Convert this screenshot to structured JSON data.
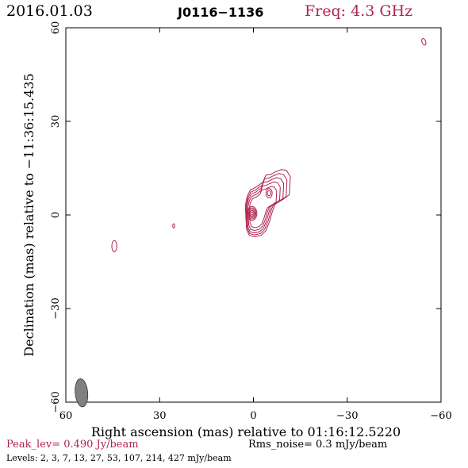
{
  "header": {
    "date": "2016.01.03",
    "source": "J0116−1136",
    "freq": "Freq: 4.3 GHz"
  },
  "chart_data": {
    "type": "contour",
    "xlabel": "Right ascension (mas) relative to 01:16:12.5220",
    "ylabel": "Declination (mas) relative to −11:36:15.435",
    "xlim": [
      60,
      -60
    ],
    "ylim": [
      -60,
      60
    ],
    "x_ticks": [
      60,
      30,
      0,
      -30,
      -60
    ],
    "y_ticks": [
      60,
      30,
      0,
      -30,
      -60
    ],
    "x_tick_labels": [
      "60",
      "30",
      "0",
      "−30",
      "−60"
    ],
    "y_tick_labels": [
      "60",
      "30",
      "0",
      "−30",
      "−60"
    ],
    "contour_color": "#b0244f",
    "beam": {
      "x": 55,
      "y": -57,
      "major_mas": 4.5,
      "minor_mas": 2.0,
      "pa_deg": 5,
      "color": "#808080"
    },
    "core": {
      "x": 0,
      "y": 0
    },
    "features": [
      {
        "name": "core",
        "x": 0.5,
        "y": 0.5,
        "rx": 1.6,
        "ry": 2.2,
        "rot": 0
      },
      {
        "name": "jet-knot",
        "x": -5,
        "y": 7,
        "rx": 1.0,
        "ry": 1.5,
        "rot": 0
      },
      {
        "name": "west-island",
        "x": 25.5,
        "y": -3.5,
        "rx": 0.3,
        "ry": 0.7,
        "rot": 0
      },
      {
        "name": "east-island",
        "x": 44.5,
        "y": -10,
        "rx": 0.8,
        "ry": 1.8,
        "rot": 0
      },
      {
        "name": "ne-corner-island",
        "x": -54.5,
        "y": 55.5,
        "rx": 0.6,
        "ry": 1.1,
        "rot": -20
      }
    ]
  },
  "footer": {
    "peak": "Peak_lev=  0.490 Jy/beam",
    "rms": "Rms_noise=  0.3 mJy/beam",
    "levels": "Levels:   2,   3,   7,   13,   27,   53,  107,  214,  427  mJy/beam"
  }
}
